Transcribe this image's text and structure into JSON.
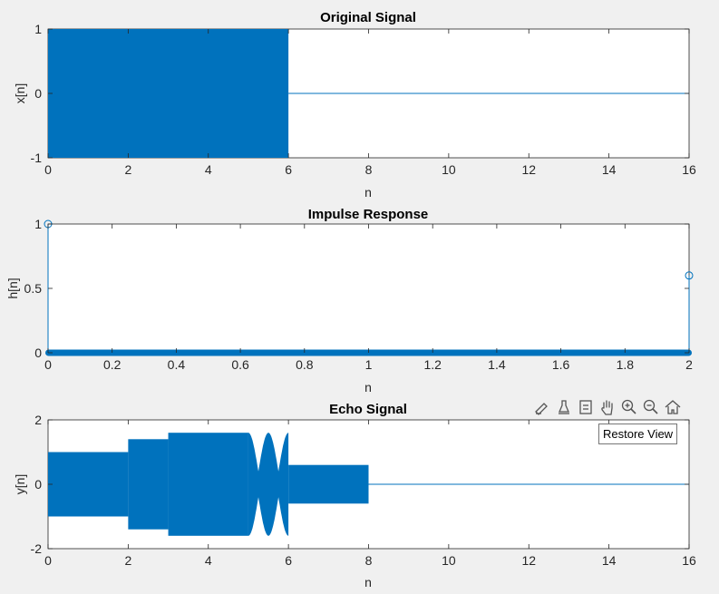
{
  "figure": {
    "toolbar": {
      "tools": [
        {
          "name": "brush-icon"
        },
        {
          "name": "data-tips-icon"
        },
        {
          "name": "legend-icon"
        },
        {
          "name": "pan-hand-icon"
        },
        {
          "name": "zoom-in-icon"
        },
        {
          "name": "zoom-out-icon"
        },
        {
          "name": "home-restore-icon"
        }
      ],
      "tooltip": "Restore View"
    },
    "colors": {
      "line": "#0072BD",
      "axes_bg": "#ffffff",
      "figure_bg": "#f0f0f0"
    }
  },
  "chart_data": [
    {
      "type": "line",
      "title": "Original Signal",
      "xlabel": "n",
      "ylabel": "x[n]",
      "xlim": [
        0,
        16
      ],
      "ylim": [
        -1,
        1
      ],
      "xticks": [
        0,
        2,
        4,
        6,
        8,
        10,
        12,
        14,
        16
      ],
      "yticks": [
        -1,
        0,
        1
      ],
      "series": [
        {
          "style": "dense-oscillation",
          "envelope": [
            {
              "x": 0,
              "min": -1,
              "max": 1
            },
            {
              "x": 6,
              "min": -1,
              "max": 1
            }
          ],
          "baseline": {
            "x": [
              6,
              16
            ],
            "y": 0
          }
        }
      ]
    },
    {
      "type": "stem",
      "title": "Impulse Response",
      "xlabel": "n",
      "ylabel": "h[n]",
      "xlim": [
        0,
        2
      ],
      "ylim": [
        0,
        1
      ],
      "xticks": [
        0,
        0.2,
        0.4,
        0.6,
        0.8,
        1,
        1.2,
        1.4,
        1.6,
        1.8,
        2
      ],
      "xtick_labels": [
        "0",
        "0.2",
        "0.4",
        "0.6",
        "0.8",
        "1",
        "1.2",
        "1.4",
        "1.6",
        "1.8",
        "2"
      ],
      "yticks": [
        0,
        0.5,
        1
      ],
      "series": [
        {
          "impulses": [
            {
              "x": 0,
              "y": 1
            },
            {
              "x": 2,
              "y": 0.6
            }
          ],
          "zero_samples": {
            "from": 0,
            "to": 2
          }
        }
      ]
    },
    {
      "type": "line",
      "title": "Echo Signal",
      "xlabel": "n",
      "ylabel": "y[n]",
      "xlim": [
        0,
        16
      ],
      "ylim": [
        -2,
        2
      ],
      "xticks": [
        0,
        2,
        4,
        6,
        8,
        10,
        12,
        14,
        16
      ],
      "yticks": [
        -2,
        0,
        2
      ],
      "series": [
        {
          "style": "dense-oscillation",
          "segments": [
            {
              "x0": 0,
              "x1": 2,
              "amp": 1
            },
            {
              "x0": 2,
              "x1": 3,
              "amp": 1.4
            },
            {
              "x0": 3,
              "x1": 5,
              "amp": 1.6
            },
            {
              "x0": 6,
              "x1": 8,
              "amp": 0.6
            }
          ],
          "beat_region": {
            "x0": 5,
            "x1": 6,
            "amp_max": 1.6,
            "amp_min": 0.4
          },
          "baseline": {
            "x": [
              8,
              16
            ],
            "y": 0
          }
        }
      ]
    }
  ]
}
